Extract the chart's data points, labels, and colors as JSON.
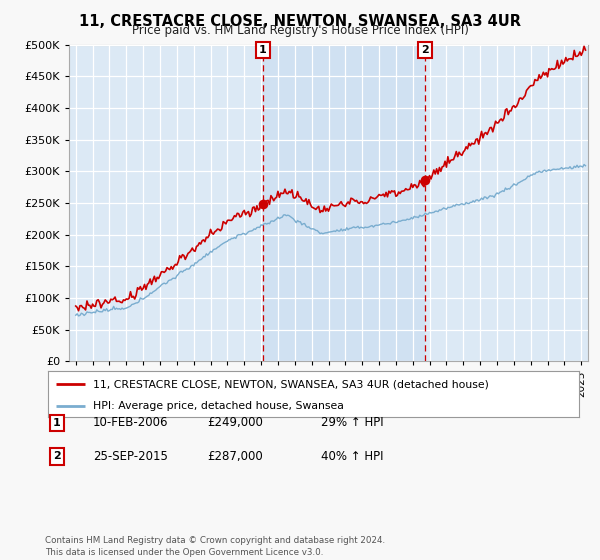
{
  "title": "11, CRESTACRE CLOSE, NEWTON, SWANSEA, SA3 4UR",
  "subtitle": "Price paid vs. HM Land Registry's House Price Index (HPI)",
  "ylim": [
    0,
    500000
  ],
  "yticks": [
    0,
    50000,
    100000,
    150000,
    200000,
    250000,
    300000,
    350000,
    400000,
    450000,
    500000
  ],
  "xlim_start": 1994.6,
  "xlim_end": 2025.4,
  "background_color": "#dce9f5",
  "highlight_color": "#c8ddf0",
  "grid_color": "#ffffff",
  "sale1_x": 2006.11,
  "sale1_y": 249000,
  "sale1_label": "1",
  "sale1_date": "10-FEB-2006",
  "sale1_price": "£249,000",
  "sale1_pct": "29% ↑ HPI",
  "sale2_x": 2015.73,
  "sale2_y": 287000,
  "sale2_label": "2",
  "sale2_date": "25-SEP-2015",
  "sale2_price": "£287,000",
  "sale2_pct": "40% ↑ HPI",
  "line_color_red": "#cc0000",
  "line_color_blue": "#7aadcf",
  "legend1_label": "11, CRESTACRE CLOSE, NEWTON, SWANSEA, SA3 4UR (detached house)",
  "legend2_label": "HPI: Average price, detached house, Swansea",
  "footer": "Contains HM Land Registry data © Crown copyright and database right 2024.\nThis data is licensed under the Open Government Licence v3.0.",
  "fig_bg": "#f8f8f8"
}
